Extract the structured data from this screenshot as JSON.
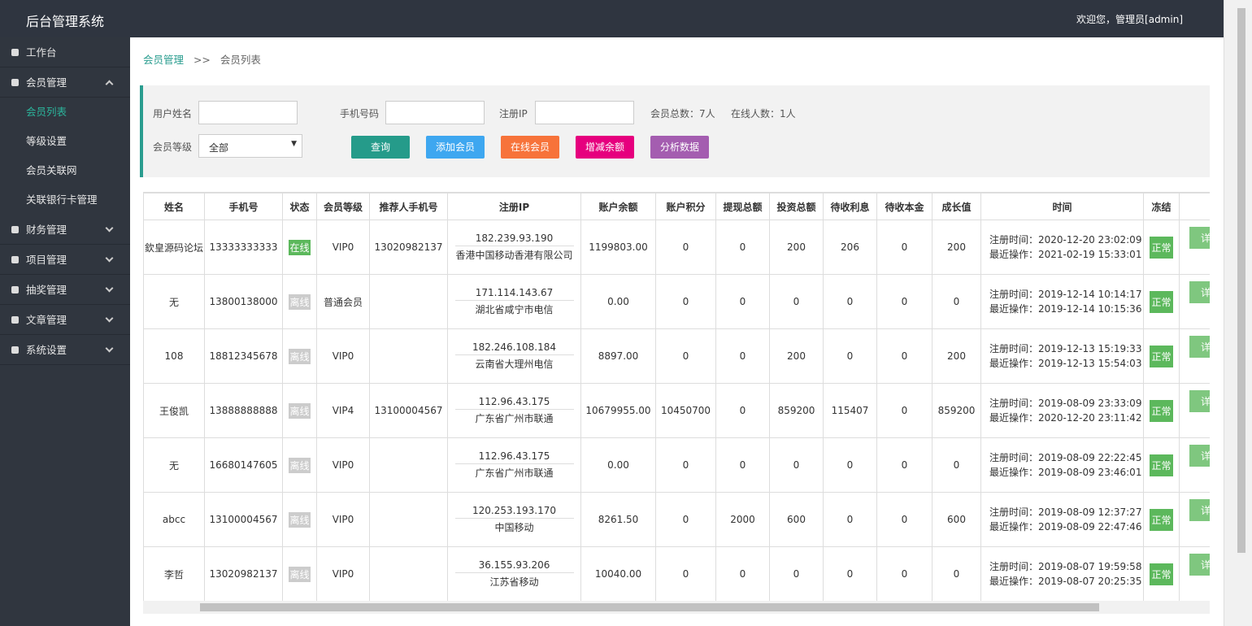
{
  "header": {
    "title": "后台管理系统",
    "user": "欢迎您，管理员[admin]"
  },
  "sidebar": {
    "items": [
      {
        "label": "工作台"
      },
      {
        "label": "会员管理",
        "children": [
          "会员列表",
          "等级设置",
          "会员关联网",
          "关联银行卡管理"
        ]
      },
      {
        "label": "财务管理"
      },
      {
        "label": "项目管理"
      },
      {
        "label": "抽奖管理"
      },
      {
        "label": "文章管理"
      },
      {
        "label": "系统设置"
      }
    ]
  },
  "breadcrumb": {
    "parent": "会员管理",
    "separator": ">>",
    "current": "会员列表"
  },
  "filter": {
    "name_label": "用户姓名",
    "phone_label": "手机号码",
    "ip_label": "注册IP",
    "total": "会员总数：7人",
    "online": "在线人数：1人",
    "level_label": "会员等级",
    "level_value": "全部",
    "buttons": [
      "查询",
      "添加会员",
      "在线会员",
      "增减余额",
      "分析数据"
    ]
  },
  "table": {
    "headers": [
      "姓名",
      "手机号",
      "状态",
      "会员等级",
      "推荐人手机号",
      "注册IP",
      "账户余额",
      "账户积分",
      "提现总额",
      "投资总额",
      "待收利息",
      "待收本金",
      "成长值",
      "时间",
      "冻结"
    ],
    "rows": [
      {
        "name": "欽皇源码论坛",
        "phone": "13333333333",
        "status": "在线",
        "level": "VIP0",
        "referrer": "13020982137",
        "ip": "182.239.93.190",
        "location": "香港中国移动香港有限公司",
        "balance": "1199803.00",
        "points": "0",
        "withdraw": "0",
        "invest": "200",
        "interest": "206",
        "principal": "0",
        "growth": "200",
        "reg": "注册时间：2020-12-20 23:02:09",
        "last": "最近操作：2021-02-19 15:33:01",
        "freeze": "正常",
        "action": "详"
      },
      {
        "name": "无",
        "phone": "13800138000",
        "status": "离线",
        "level": "普通会员",
        "referrer": null,
        "ip": "171.114.143.67",
        "location": "湖北省咸宁市电信",
        "balance": "0.00",
        "points": "0",
        "withdraw": "0",
        "invest": "0",
        "interest": "0",
        "principal": "0",
        "growth": "0",
        "reg": "注册时间：2019-12-14 10:14:17",
        "last": "最近操作：2019-12-14 10:15:36",
        "freeze": "正常",
        "action": "详"
      },
      {
        "name": "108",
        "phone": "18812345678",
        "status": "离线",
        "level": "VIP0",
        "referrer": null,
        "ip": "182.246.108.184",
        "location": "云南省大理州电信",
        "balance": "8897.00",
        "points": "0",
        "withdraw": "0",
        "invest": "200",
        "interest": "0",
        "principal": "0",
        "growth": "200",
        "reg": "注册时间：2019-12-13 15:19:33",
        "last": "最近操作：2019-12-13 15:54:03",
        "freeze": "正常",
        "action": "详"
      },
      {
        "name": "王俊凯",
        "phone": "13888888888",
        "status": "离线",
        "level": "VIP4",
        "referrer": "13100004567",
        "ip": "112.96.43.175",
        "location": "广东省广州市联通",
        "balance": "10679955.00",
        "points": "10450700",
        "withdraw": "0",
        "invest": "859200",
        "interest": "115407",
        "principal": "0",
        "growth": "859200",
        "reg": "注册时间：2019-08-09 23:33:09",
        "last": "最近操作：2020-12-20 23:11:42",
        "freeze": "正常",
        "action": "详"
      },
      {
        "name": "无",
        "phone": "16680147605",
        "status": "离线",
        "level": "VIP0",
        "referrer": null,
        "ip": "112.96.43.175",
        "location": "广东省广州市联通",
        "balance": "0.00",
        "points": "0",
        "withdraw": "0",
        "invest": "0",
        "interest": "0",
        "principal": "0",
        "growth": "0",
        "reg": "注册时间：2019-08-09 22:22:45",
        "last": "最近操作：2019-08-09 23:46:01",
        "freeze": "正常",
        "action": "详"
      },
      {
        "name": "abcc",
        "phone": "13100004567",
        "status": "离线",
        "level": "VIP0",
        "referrer": null,
        "ip": "120.253.193.170",
        "location": "中国移动",
        "balance": "8261.50",
        "points": "0",
        "withdraw": "2000",
        "invest": "600",
        "interest": "0",
        "principal": "0",
        "growth": "600",
        "reg": "注册时间：2019-08-09 12:37:27",
        "last": "最近操作：2019-08-09 22:47:46",
        "freeze": "正常",
        "action": "详"
      },
      {
        "name": "李哲",
        "phone": "13020982137",
        "status": "离线",
        "level": "VIP0",
        "referrer": null,
        "ip": "36.155.93.206",
        "location": "江苏省移动",
        "balance": "10040.00",
        "points": "0",
        "withdraw": "0",
        "invest": "0",
        "interest": "0",
        "principal": "0",
        "growth": "0",
        "reg": "注册时间：2019-08-07 19:59:58",
        "last": "最近操作：2019-08-07 20:25:35",
        "freeze": "正常",
        "action": "详"
      }
    ]
  }
}
